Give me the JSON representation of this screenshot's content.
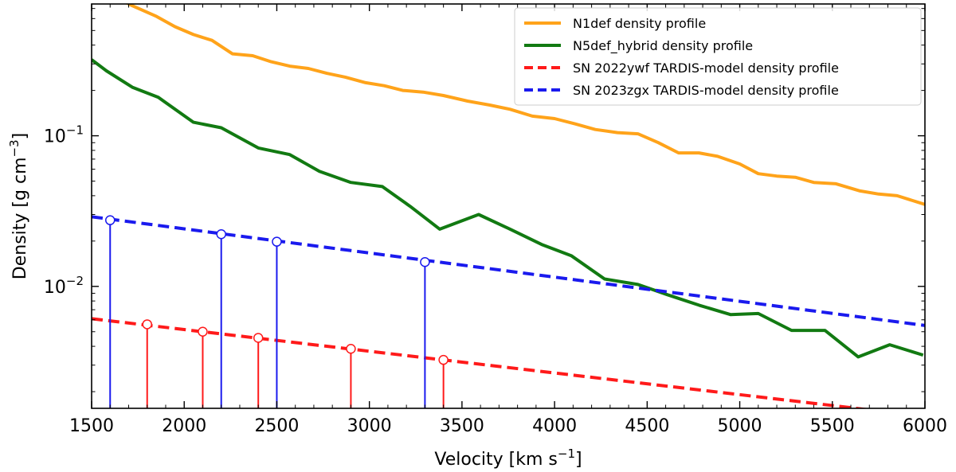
{
  "chart_data": {
    "type": "line",
    "xlabel": "Velocity [km s",
    "xlabel_sup": "−1",
    "xlabel_end": "]",
    "ylabel": "Density [g cm",
    "ylabel_sup": "−3",
    "ylabel_end": "]",
    "xlim": [
      1500,
      6000
    ],
    "ylim": [
      0.00155,
      0.75
    ],
    "yscale": "log",
    "grid": false,
    "legend_position": "top-right",
    "x_ticks": [
      1500,
      2000,
      2500,
      3000,
      3500,
      4000,
      4500,
      5000,
      5500,
      6000
    ],
    "x_tick_labels": [
      "1500",
      "2000",
      "2500",
      "3000",
      "3500",
      "4000",
      "4500",
      "5000",
      "5500",
      "6000"
    ],
    "y_major_ticks": [
      {
        "value": 0.1,
        "base": "10",
        "exp": "−1"
      },
      {
        "value": 0.01,
        "base": "10",
        "exp": "−2"
      }
    ],
    "series": [
      {
        "name": "N1def density profile",
        "color": "#ffa31a",
        "style": "solid",
        "x": [
          1500,
          1600,
          1720,
          1850,
          1950,
          2050,
          2150,
          2260,
          2370,
          2470,
          2570,
          2670,
          2770,
          2870,
          2980,
          3080,
          3180,
          3290,
          3400,
          3530,
          3650,
          3760,
          3880,
          4000,
          4110,
          4220,
          4340,
          4450,
          4560,
          4670,
          4780,
          4880,
          5000,
          5100,
          5200,
          5300,
          5400,
          5520,
          5650,
          5750,
          5850,
          6000
        ],
        "y": [
          0.97,
          0.87,
          0.73,
          0.62,
          0.53,
          0.47,
          0.43,
          0.35,
          0.34,
          0.31,
          0.29,
          0.28,
          0.26,
          0.245,
          0.225,
          0.215,
          0.2,
          0.195,
          0.185,
          0.17,
          0.16,
          0.15,
          0.135,
          0.13,
          0.12,
          0.11,
          0.105,
          0.103,
          0.09,
          0.077,
          0.077,
          0.073,
          0.065,
          0.056,
          0.054,
          0.053,
          0.049,
          0.048,
          0.043,
          0.041,
          0.04,
          0.035
        ]
      },
      {
        "name": "N5def_hybrid density profile",
        "color": "#127a12",
        "style": "solid",
        "x": [
          1500,
          1580,
          1720,
          1860,
          2050,
          2200,
          2400,
          2570,
          2730,
          2900,
          3070,
          3220,
          3380,
          3590,
          3760,
          3930,
          4090,
          4270,
          4450,
          4610,
          4780,
          4950,
          5100,
          5280,
          5460,
          5640,
          5810,
          5990
        ],
        "y": [
          0.32,
          0.27,
          0.21,
          0.18,
          0.123,
          0.113,
          0.083,
          0.075,
          0.058,
          0.049,
          0.046,
          0.034,
          0.024,
          0.03,
          0.024,
          0.019,
          0.016,
          0.0112,
          0.0103,
          0.0088,
          0.0075,
          0.0065,
          0.0066,
          0.0051,
          0.0051,
          0.0034,
          0.0041,
          0.0035
        ]
      },
      {
        "name": "SN 2022ywf TARDIS-model density profile",
        "color": "#ff1a1a",
        "style": "dashed",
        "x": [
          1500,
          6000
        ],
        "y": [
          0.0061,
          0.00137
        ],
        "markers": [
          {
            "x": 1800,
            "y": 0.0056
          },
          {
            "x": 2100,
            "y": 0.005
          },
          {
            "x": 2400,
            "y": 0.00455
          },
          {
            "x": 2900,
            "y": 0.00385
          },
          {
            "x": 3400,
            "y": 0.00325
          }
        ]
      },
      {
        "name": "SN 2023zgx TARDIS-model density profile",
        "color": "#1a1aee",
        "style": "dashed",
        "x": [
          1500,
          6000
        ],
        "y": [
          0.029,
          0.0055
        ],
        "markers": [
          {
            "x": 1600,
            "y": 0.0275
          },
          {
            "x": 2200,
            "y": 0.0222
          },
          {
            "x": 2500,
            "y": 0.0198
          },
          {
            "x": 3300,
            "y": 0.0145
          }
        ]
      }
    ]
  }
}
